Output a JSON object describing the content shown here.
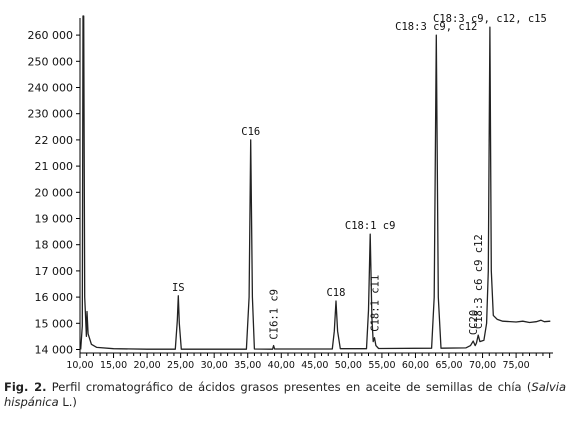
{
  "chart_data": {
    "type": "line",
    "title": "",
    "xlabel": "",
    "ylabel": "",
    "xlim": [
      10.0,
      80.5
    ],
    "ylim": [
      13900,
      263500
    ],
    "y_axis_scale": "piecewise (compressed above 24 000)",
    "grid": false,
    "x_ticks": [
      10.0,
      15.0,
      20.0,
      25.0,
      30.0,
      35.0,
      40.0,
      45.0,
      50.0,
      55.0,
      60.0,
      65.0,
      70.0,
      75.0
    ],
    "x_tick_labels": [
      "10,00",
      "15,00",
      "20,00",
      "25,00",
      "30,00",
      "35,00",
      "40,00",
      "45,00",
      "50,00",
      "55,00",
      "60,00",
      "65,00",
      "70,00",
      "75,00"
    ],
    "y_ticks": [
      14000,
      15000,
      16000,
      17000,
      18000,
      19000,
      20000,
      21000,
      22000,
      230000,
      240000,
      250000,
      260000
    ],
    "y_tick_labels": [
      "14 000",
      "15 000",
      "16 000",
      "17 000",
      "18 000",
      "19 000",
      "20 000",
      "21 000",
      "22 000",
      "230 000",
      "240 000",
      "250 000",
      "260 000"
    ],
    "series": [
      {
        "color": "#222222",
        "points": [
          [
            10.1,
            14000
          ],
          [
            10.35,
            14900
          ],
          [
            10.45,
            300000
          ],
          [
            10.55,
            300000
          ],
          [
            10.7,
            16000
          ],
          [
            10.95,
            14500
          ],
          [
            11.05,
            15450
          ],
          [
            11.2,
            14600
          ],
          [
            11.7,
            14200
          ],
          [
            12.5,
            14080
          ],
          [
            15.0,
            14030
          ],
          [
            20.0,
            14010
          ],
          [
            24.2,
            14010
          ],
          [
            24.5,
            15100
          ],
          [
            24.65,
            16050
          ],
          [
            24.8,
            15000
          ],
          [
            25.1,
            14010
          ],
          [
            34.8,
            14010
          ],
          [
            35.2,
            16000
          ],
          [
            35.45,
            22000
          ],
          [
            35.7,
            16000
          ],
          [
            36.0,
            14020
          ],
          [
            38.7,
            14010
          ],
          [
            38.85,
            14150
          ],
          [
            39.0,
            14020
          ],
          [
            47.6,
            14020
          ],
          [
            47.9,
            14700
          ],
          [
            48.15,
            15850
          ],
          [
            48.4,
            14700
          ],
          [
            48.8,
            14030
          ],
          [
            52.7,
            14030
          ],
          [
            53.0,
            15500
          ],
          [
            53.25,
            18400
          ],
          [
            53.5,
            15200
          ],
          [
            53.7,
            14300
          ],
          [
            53.9,
            14450
          ],
          [
            54.1,
            14150
          ],
          [
            54.5,
            14040
          ],
          [
            62.4,
            14050
          ],
          [
            62.8,
            16000
          ],
          [
            63.1,
            260000
          ],
          [
            63.4,
            16000
          ],
          [
            63.8,
            14050
          ],
          [
            67.5,
            14060
          ],
          [
            68.2,
            14150
          ],
          [
            68.6,
            14320
          ],
          [
            68.9,
            14150
          ],
          [
            69.1,
            14250
          ],
          [
            69.35,
            14550
          ],
          [
            69.6,
            14300
          ],
          [
            70.2,
            14350
          ],
          [
            70.6,
            15000
          ],
          [
            70.85,
            17000
          ],
          [
            71.1,
            263000
          ],
          [
            71.3,
            17000
          ],
          [
            71.6,
            15300
          ],
          [
            72.2,
            15150
          ],
          [
            73.0,
            15080
          ],
          [
            75.0,
            15050
          ],
          [
            76.0,
            15080
          ],
          [
            77.0,
            15030
          ],
          [
            78.0,
            15060
          ],
          [
            78.7,
            15120
          ],
          [
            79.2,
            15060
          ],
          [
            80.1,
            15080
          ]
        ]
      }
    ],
    "peaks": [
      {
        "label": "IS",
        "x": 24.65,
        "y": 16050,
        "orientation": "horizontal"
      },
      {
        "label": "C16",
        "x": 35.45,
        "y": 22000,
        "orientation": "horizontal"
      },
      {
        "label": "CI6:1 c9",
        "x": 38.85,
        "y": 14150,
        "orientation": "vertical"
      },
      {
        "label": "C18",
        "x": 48.15,
        "y": 15850,
        "orientation": "horizontal"
      },
      {
        "label": "C18:1 c9",
        "x": 53.25,
        "y": 18400,
        "orientation": "horizontal"
      },
      {
        "label": "C18:1 c11",
        "x": 53.9,
        "y": 14450,
        "orientation": "vertical"
      },
      {
        "label": "C18:3 c9, c12",
        "x": 63.1,
        "y": 260000,
        "orientation": "horizontal"
      },
      {
        "label": "CC20",
        "x": 68.6,
        "y": 14320,
        "orientation": "vertical"
      },
      {
        "label": "C18:3 c6 c9 c12",
        "x": 69.35,
        "y": 14550,
        "orientation": "vertical"
      },
      {
        "label": "C18:3 c9, c12, c15",
        "x": 71.1,
        "y": 263000,
        "orientation": "horizontal"
      }
    ]
  },
  "caption": {
    "fig_label": "Fig. 2.",
    "text": "Perfil cromatográfico de ácidos grasos presentes en aceite de semillas de chía (",
    "species": "Salvia hispánica",
    "tail": " L.)"
  }
}
